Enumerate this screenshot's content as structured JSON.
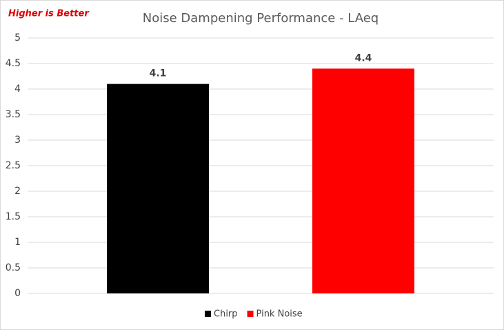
{
  "chart_data": {
    "type": "bar",
    "title": "Noise Dampening Performance - LAeq",
    "annotation": "Higher is Better",
    "categories": [
      null
    ],
    "series": [
      {
        "name": "Chirp",
        "color": "#000000",
        "values": [
          4.1
        ]
      },
      {
        "name": "Pink Noise",
        "color": "#ff0000",
        "values": [
          4.4
        ]
      }
    ],
    "ylim": [
      0,
      5
    ],
    "yticks": [
      0,
      0.5,
      1,
      1.5,
      2,
      2.5,
      3,
      3.5,
      4,
      4.5,
      5
    ],
    "grid": true,
    "legend": "bottom"
  }
}
